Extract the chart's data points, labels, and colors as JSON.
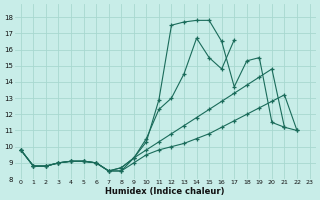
{
  "xlabel": "Humidex (Indice chaleur)",
  "background_color": "#c8ede8",
  "grid_color": "#a8d8d0",
  "line_color": "#1a6b5a",
  "xlim": [
    -0.5,
    23.5
  ],
  "ylim": [
    8.0,
    18.8
  ],
  "yticks": [
    8,
    9,
    10,
    11,
    12,
    13,
    14,
    15,
    16,
    17,
    18
  ],
  "xticks": [
    0,
    1,
    2,
    3,
    4,
    5,
    6,
    7,
    8,
    9,
    10,
    11,
    12,
    13,
    14,
    15,
    16,
    17,
    18,
    19,
    20,
    21,
    22,
    23
  ],
  "lines": [
    {
      "x": [
        0,
        1,
        2,
        3,
        4,
        5,
        6,
        7,
        8,
        9,
        10,
        11,
        12,
        13,
        14,
        15,
        16,
        17,
        18,
        19,
        20,
        21
      ],
      "y": [
        9.8,
        8.8,
        8.8,
        9.0,
        9.1,
        9.1,
        9.0,
        8.5,
        8.5,
        9.3,
        10.3,
        12.9,
        17.5,
        17.7,
        17.8,
        17.8,
        16.5,
        13.7,
        15.3,
        15.5,
        11.5,
        11.2
      ]
    },
    {
      "x": [
        0,
        1,
        2,
        3,
        4,
        5,
        6,
        7,
        8,
        9,
        10,
        11,
        12,
        13,
        14,
        15,
        16,
        17
      ],
      "y": [
        9.8,
        8.8,
        8.8,
        9.0,
        9.1,
        9.1,
        9.0,
        8.5,
        8.7,
        9.3,
        10.5,
        12.3,
        13.0,
        14.5,
        16.7,
        15.5,
        14.8,
        16.6
      ]
    },
    {
      "x": [
        0,
        1,
        2,
        3,
        4,
        5,
        6,
        7,
        8,
        9,
        10,
        11,
        12,
        13,
        14,
        15,
        16,
        17,
        18,
        19,
        20,
        21,
        22
      ],
      "y": [
        9.8,
        8.8,
        8.8,
        9.0,
        9.1,
        9.1,
        9.0,
        8.5,
        8.7,
        9.3,
        9.8,
        10.3,
        10.8,
        11.3,
        11.8,
        12.3,
        12.8,
        13.3,
        13.8,
        14.3,
        14.8,
        11.2,
        11.0
      ]
    },
    {
      "x": [
        0,
        1,
        2,
        3,
        4,
        5,
        6,
        7,
        8,
        9,
        10,
        11,
        12,
        13,
        14,
        15,
        16,
        17,
        18,
        19,
        20,
        21,
        22
      ],
      "y": [
        9.8,
        8.8,
        8.8,
        9.0,
        9.1,
        9.1,
        9.0,
        8.5,
        8.5,
        9.0,
        9.5,
        9.8,
        10.0,
        10.2,
        10.5,
        10.8,
        11.2,
        11.6,
        12.0,
        12.4,
        12.8,
        13.2,
        11.0
      ]
    }
  ]
}
